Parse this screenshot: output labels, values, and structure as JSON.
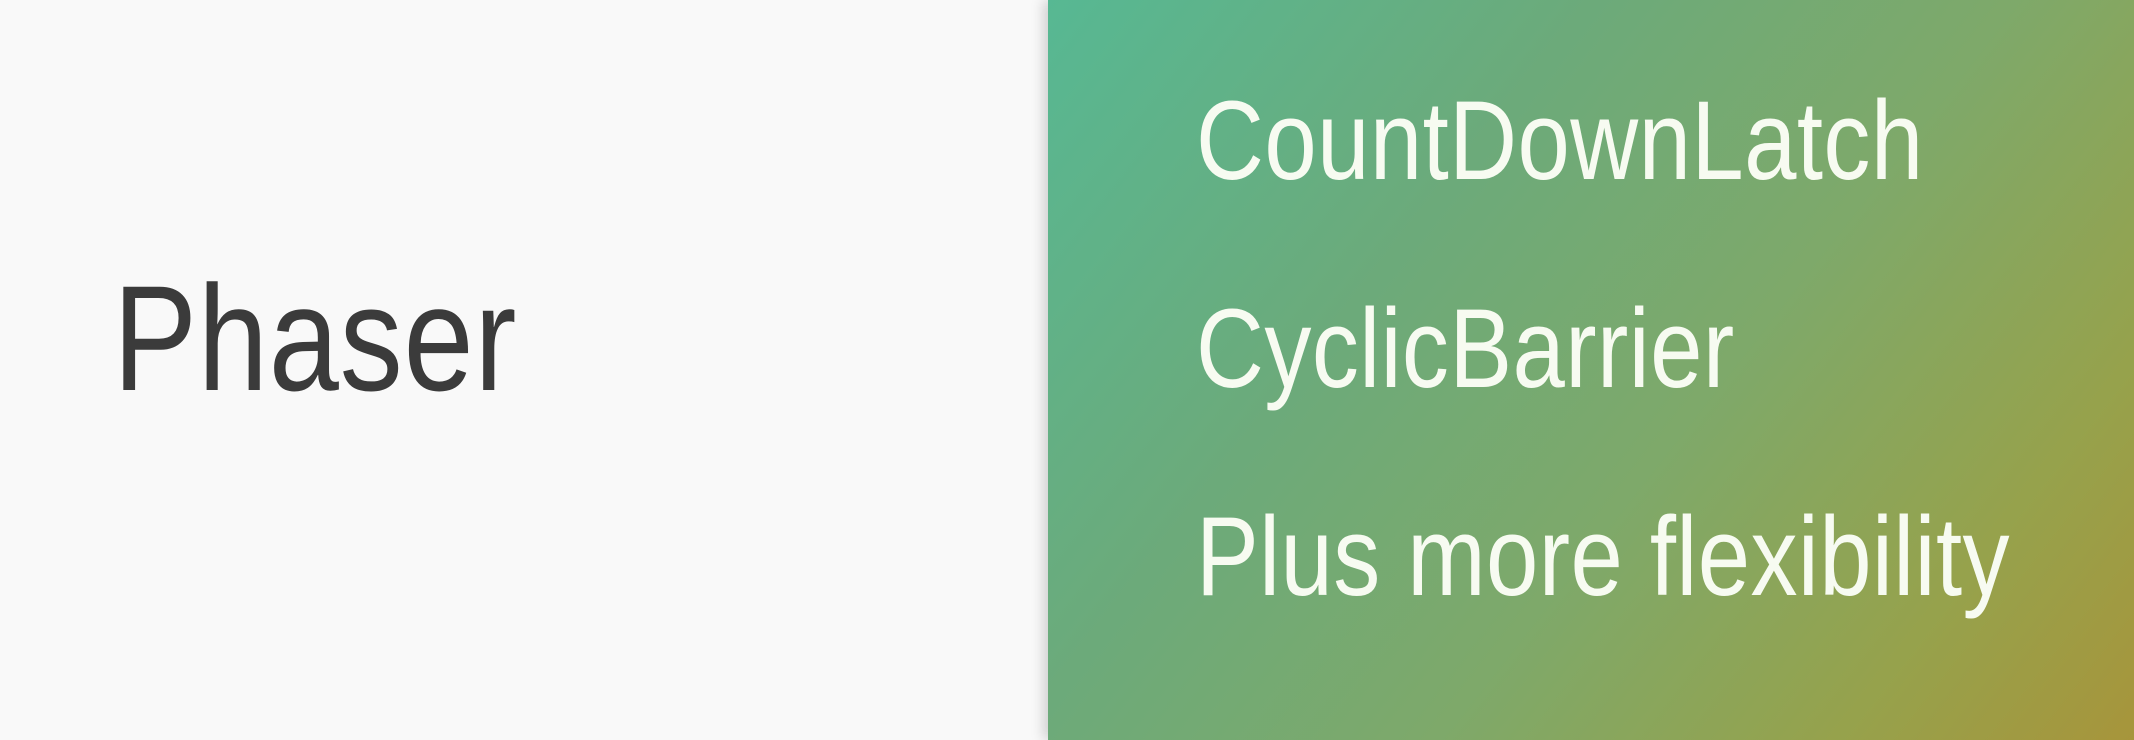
{
  "slide": {
    "title": "Phaser",
    "bullets": [
      "CountDownLatch",
      "CyclicBarrier",
      "Plus more flexibility"
    ]
  },
  "colors": {
    "left_background": "#f9f9f9",
    "title_text": "#3b3b3b",
    "right_gradient_start": "#57b893",
    "right_gradient_end": "#a7953b",
    "bullet_text": "#f7fbf1"
  }
}
